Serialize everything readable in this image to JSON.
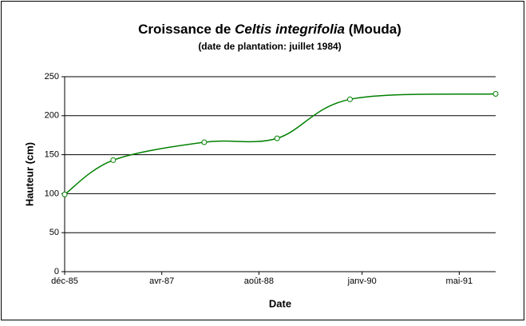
{
  "chart_data": {
    "type": "line",
    "title": [
      "Croissance de ",
      "Celtis integrifolia",
      " (Mouda)"
    ],
    "subtitle": "(date de plantation: juillet 1984)",
    "x_label": "Date",
    "y_label": "Hauteur (cm)",
    "x": [
      "1985-12",
      "1986-08",
      "1987-11",
      "1988-11",
      "1989-11",
      "1991-11"
    ],
    "series": [
      {
        "color": "#008000",
        "values": [
          99,
          143,
          166,
          171,
          221,
          228
        ]
      }
    ],
    "xlim": [
      "1985-12",
      "1991-11"
    ],
    "xticks": [
      {
        "value": "1985-12",
        "label": "déc-85"
      },
      {
        "value": "1987-04",
        "label": "avr-87"
      },
      {
        "value": "1988-08",
        "label": "août-88"
      },
      {
        "value": "1990-01",
        "label": "janv-90"
      },
      {
        "value": "1991-05",
        "label": "mai-91"
      }
    ],
    "ylim": [
      0,
      250
    ],
    "yticks": [
      0,
      50,
      100,
      150,
      200,
      250
    ],
    "grid": true,
    "smooth": true
  }
}
